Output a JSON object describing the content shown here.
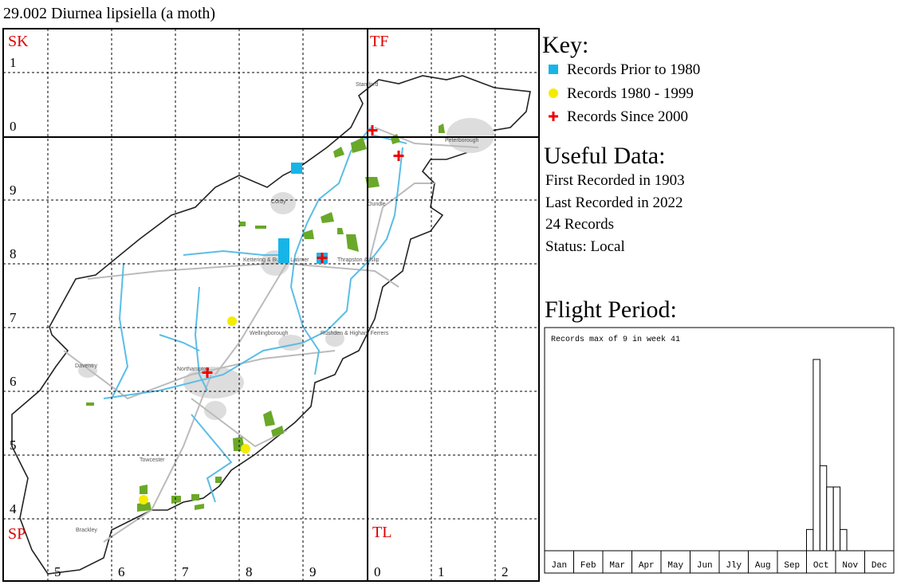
{
  "title": "29.002 Diurnea lipsiella (a moth)",
  "map": {
    "squares": [
      "SK",
      "TF",
      "SP",
      "TL"
    ],
    "northings": [
      "1",
      "0",
      "9",
      "8",
      "7",
      "6",
      "5",
      "4"
    ],
    "eastings": [
      "5",
      "6",
      "7",
      "8",
      "9",
      "0",
      "1",
      "2"
    ],
    "towns": [
      "Stamford",
      "Corby",
      "Oundle",
      "Peterborough",
      "Kettering & Burton Latimer",
      "Thrapston & Islip",
      "Wellingborough",
      "Rushden & Higham Ferrers",
      "Daventry",
      "Northampton",
      "Towcester",
      "Brackley"
    ]
  },
  "key": {
    "title": "Key:",
    "items": [
      "Records Prior to 1980",
      "Records 1980 - 1999",
      "Records Since 2000"
    ]
  },
  "useful_data": {
    "title": "Useful Data:",
    "lines": [
      "First Recorded in 1903",
      "Last Recorded in 2022",
      "24 Records",
      "Status: Local"
    ]
  },
  "flight_period": {
    "title": "Flight Period:",
    "note": "Records max of 9 in week 41",
    "months": [
      "Jan",
      "Feb",
      "Mar",
      "Apr",
      "May",
      "Jun",
      "Jly",
      "Aug",
      "Sep",
      "Oct",
      "Nov",
      "Dec"
    ],
    "weeks": [
      40,
      41,
      42,
      43,
      44,
      45
    ],
    "counts": [
      1,
      9,
      4,
      3,
      3,
      1
    ]
  }
}
